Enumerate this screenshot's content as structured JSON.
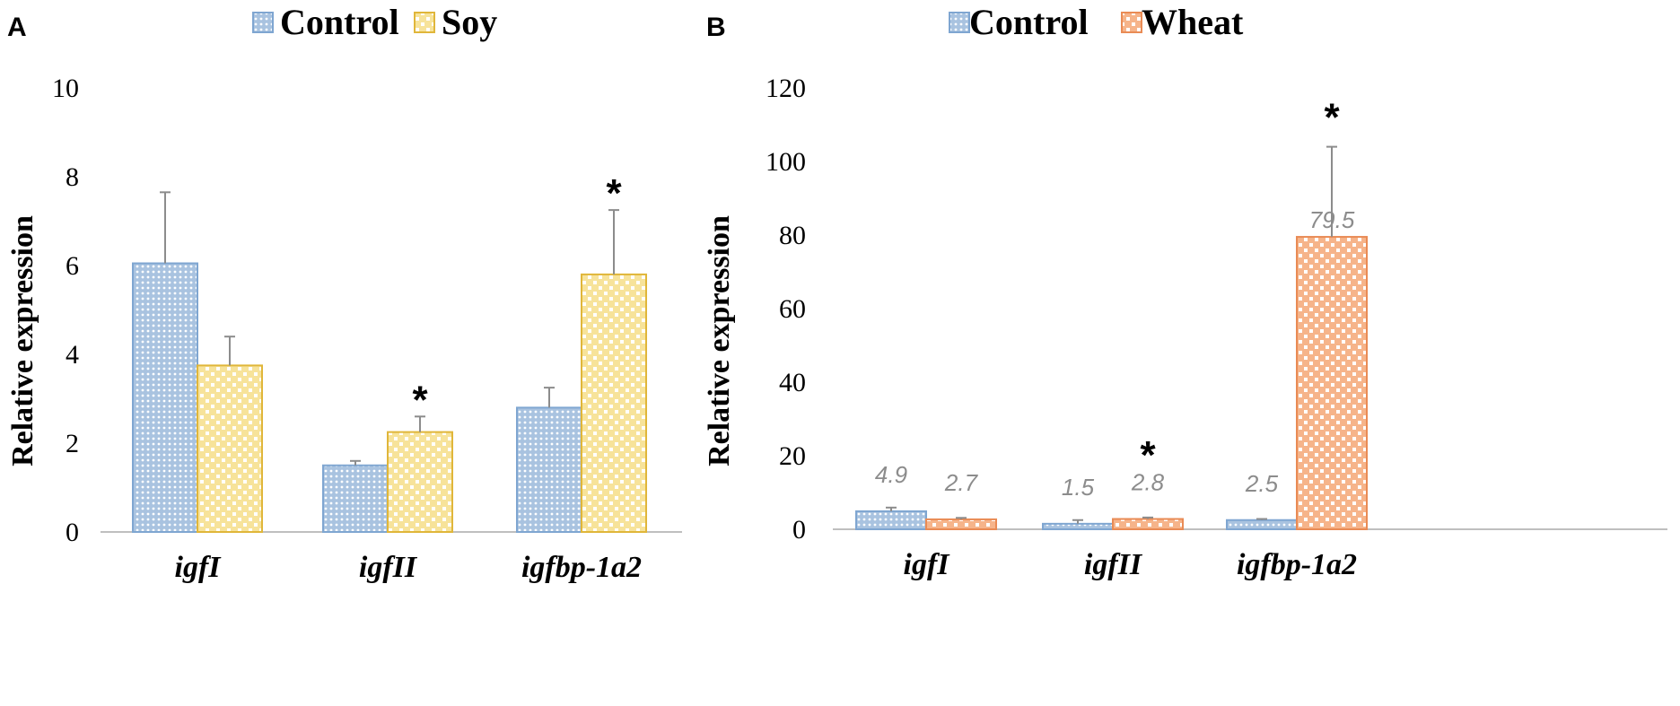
{
  "chart_data": [
    {
      "type": "bar",
      "panel": "A",
      "title": "",
      "xlabel": "",
      "ylabel": "Relative expression",
      "ylim": [
        0,
        10
      ],
      "yticks": [
        0,
        2,
        4,
        6,
        8,
        10
      ],
      "ytick_labels": [
        "0",
        "2",
        "4",
        "6",
        "8",
        "10"
      ],
      "grid": false,
      "legend_position": "top-center",
      "categories": [
        "igfI",
        "igfII",
        "igfbp-1a2"
      ],
      "series": [
        {
          "name": "Control",
          "color": "#7fa6d1",
          "fill": "#b9cfe6",
          "values": [
            6.05,
            1.5,
            2.8
          ],
          "errors": [
            1.6,
            0.1,
            0.45
          ],
          "significance": [
            "",
            "",
            ""
          ],
          "data_labels": []
        },
        {
          "name": "Soy",
          "color": "#e0b63a",
          "fill": "#f6e08a",
          "values": [
            3.75,
            2.25,
            5.8
          ],
          "errors": [
            0.65,
            0.35,
            1.45
          ],
          "significance": [
            "",
            "*",
            "*"
          ],
          "data_labels": []
        }
      ]
    },
    {
      "type": "bar",
      "panel": "B",
      "title": "",
      "xlabel": "",
      "ylabel": "Relative expression",
      "ylim": [
        0,
        120
      ],
      "yticks": [
        0,
        20,
        40,
        60,
        80,
        100,
        120
      ],
      "ytick_labels": [
        "0",
        "20",
        "40",
        "60",
        "80",
        "100",
        "120"
      ],
      "grid": false,
      "legend_position": "top-center",
      "categories": [
        "igfI",
        "igfII",
        "igfbp-1a2"
      ],
      "series": [
        {
          "name": "Control",
          "color": "#7fa6d1",
          "fill": "#b9cfe6",
          "values": [
            4.9,
            1.5,
            2.5
          ],
          "errors": [
            1.0,
            1.0,
            0.3
          ],
          "significance": [
            "",
            "",
            ""
          ],
          "data_labels": [
            "4.9",
            "1.5",
            "2.5"
          ]
        },
        {
          "name": "Wheat",
          "color": "#e98b55",
          "fill": "#f7c2a0",
          "values": [
            2.7,
            2.8,
            79.5
          ],
          "errors": [
            0.4,
            0.4,
            24.5
          ],
          "significance": [
            "",
            "*",
            "*"
          ],
          "data_labels": [
            "2.7",
            "2.8",
            "79.5"
          ]
        }
      ]
    }
  ]
}
